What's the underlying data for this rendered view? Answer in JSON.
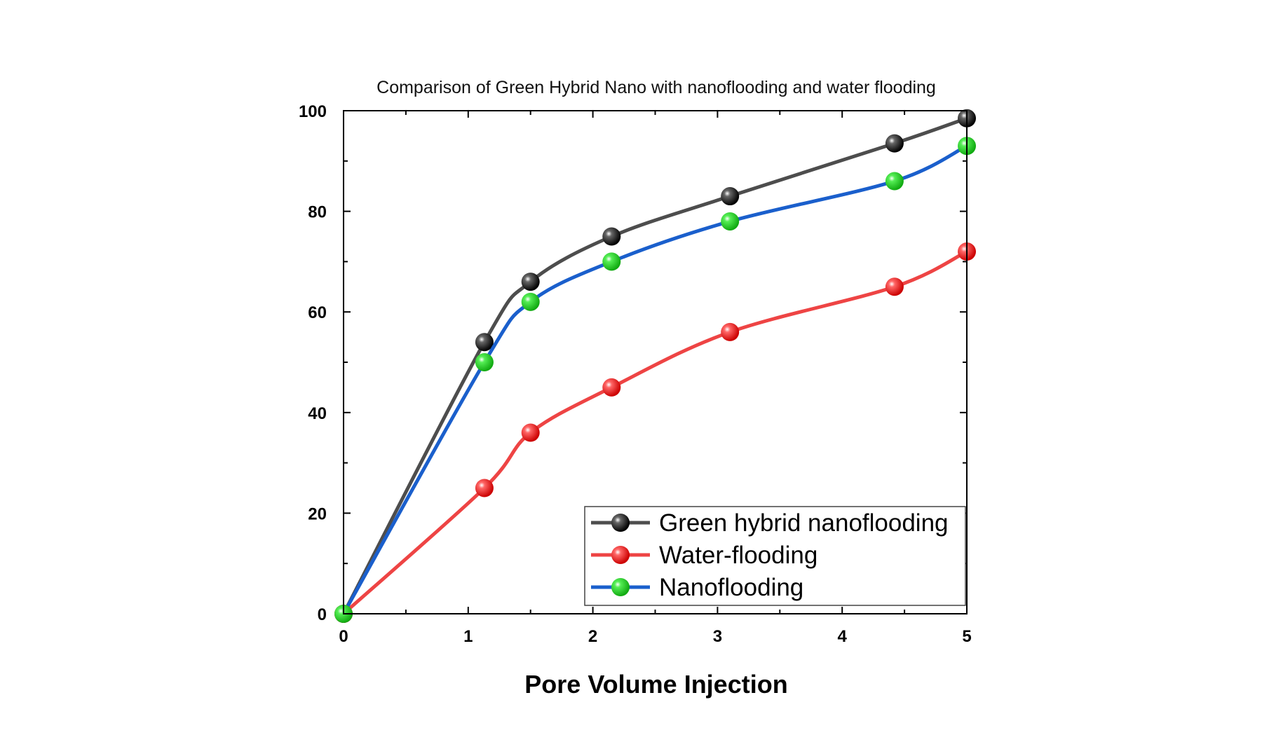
{
  "chart_data": {
    "type": "line",
    "title": "Comparison of Green Hybrid Nano with nanoflooding and water flooding",
    "xlabel": "Pore Volume Injection",
    "ylabel": "",
    "xlim": [
      0,
      5
    ],
    "ylim": [
      0,
      100
    ],
    "x_ticks": [
      "0",
      "1",
      "2",
      "3",
      "4",
      "5"
    ],
    "y_ticks": [
      "0",
      "20",
      "40",
      "60",
      "80",
      "100"
    ],
    "grid": false,
    "legend_position": "bottom-right",
    "series": [
      {
        "name": "Green hybrid nanoflooding",
        "line_color": "#4d4d4d",
        "marker_color": "#000000",
        "x": [
          0,
          1.13,
          1.5,
          2.15,
          3.1,
          4.42,
          5
        ],
        "y": [
          0,
          54,
          66,
          75,
          83,
          93.5,
          98.5
        ]
      },
      {
        "name": "Water-flooding",
        "line_color": "#ee4444",
        "marker_color": "#ee1111",
        "x": [
          0,
          1.13,
          1.5,
          2.15,
          3.1,
          4.42,
          5
        ],
        "y": [
          0,
          25,
          36,
          45,
          56,
          65,
          72
        ]
      },
      {
        "name": "Nanoflooding",
        "line_color": "#1a5fcc",
        "marker_color": "#22cc22",
        "x": [
          0,
          1.13,
          1.5,
          2.15,
          3.1,
          4.42,
          5
        ],
        "y": [
          0,
          50,
          62,
          70,
          78,
          86,
          93
        ]
      }
    ]
  }
}
